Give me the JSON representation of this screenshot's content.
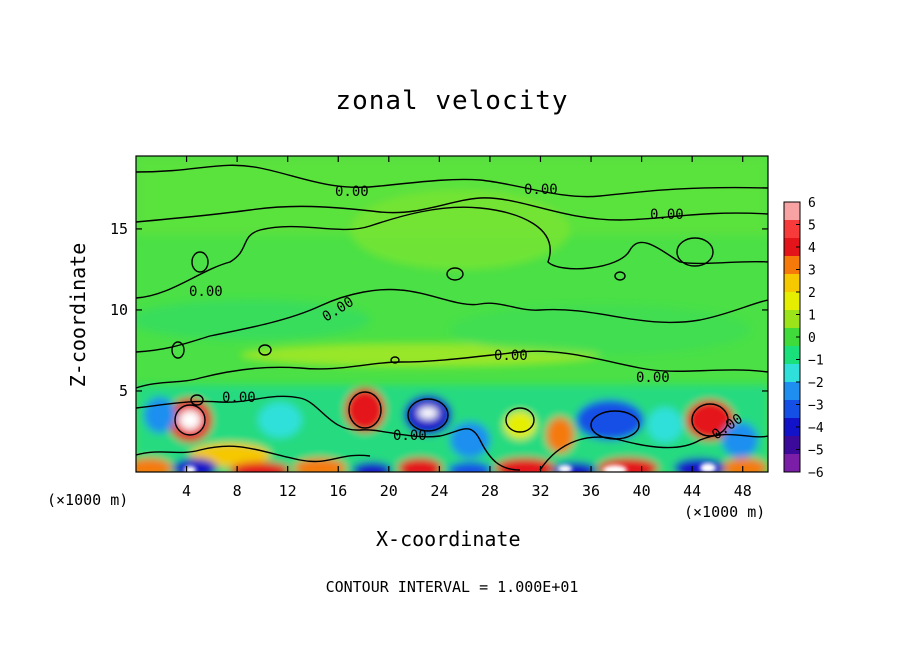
{
  "chart_data": {
    "type": "heatmap",
    "title": "zonal velocity",
    "xlabel": "X-coordinate",
    "ylabel": "Z-coordinate",
    "x_unit_note": "(×1000 m)",
    "y_unit_note": "(×1000 m)",
    "xlim": [
      0,
      50
    ],
    "ylim": [
      0,
      19.5
    ],
    "x_ticks": [
      4,
      8,
      12,
      16,
      20,
      24,
      28,
      32,
      36,
      40,
      44,
      48
    ],
    "y_ticks": [
      5,
      10,
      15
    ],
    "colorbar": {
      "ticks": [
        6,
        5,
        4,
        3,
        2,
        1,
        0,
        -1,
        -2,
        -3,
        -4,
        -5,
        -6
      ],
      "colors": [
        "#f7a3a3",
        "#f73a3a",
        "#e4141b",
        "#f57a0a",
        "#f5c800",
        "#e5ee00",
        "#9be41a",
        "#3fdb3a",
        "#19e07a",
        "#2ee0d9",
        "#1e8ff0",
        "#1450e6",
        "#1212c8",
        "#3b0a9a",
        "#7a1ea8"
      ]
    },
    "contour_labels": [
      "0.00",
      "0.00",
      "0.00",
      "0.00",
      "0.00",
      "0.00",
      "0.00",
      "0.00",
      "0.00",
      "0.00"
    ],
    "footer": "CONTOUR INTERVAL = 1.000E+01"
  }
}
